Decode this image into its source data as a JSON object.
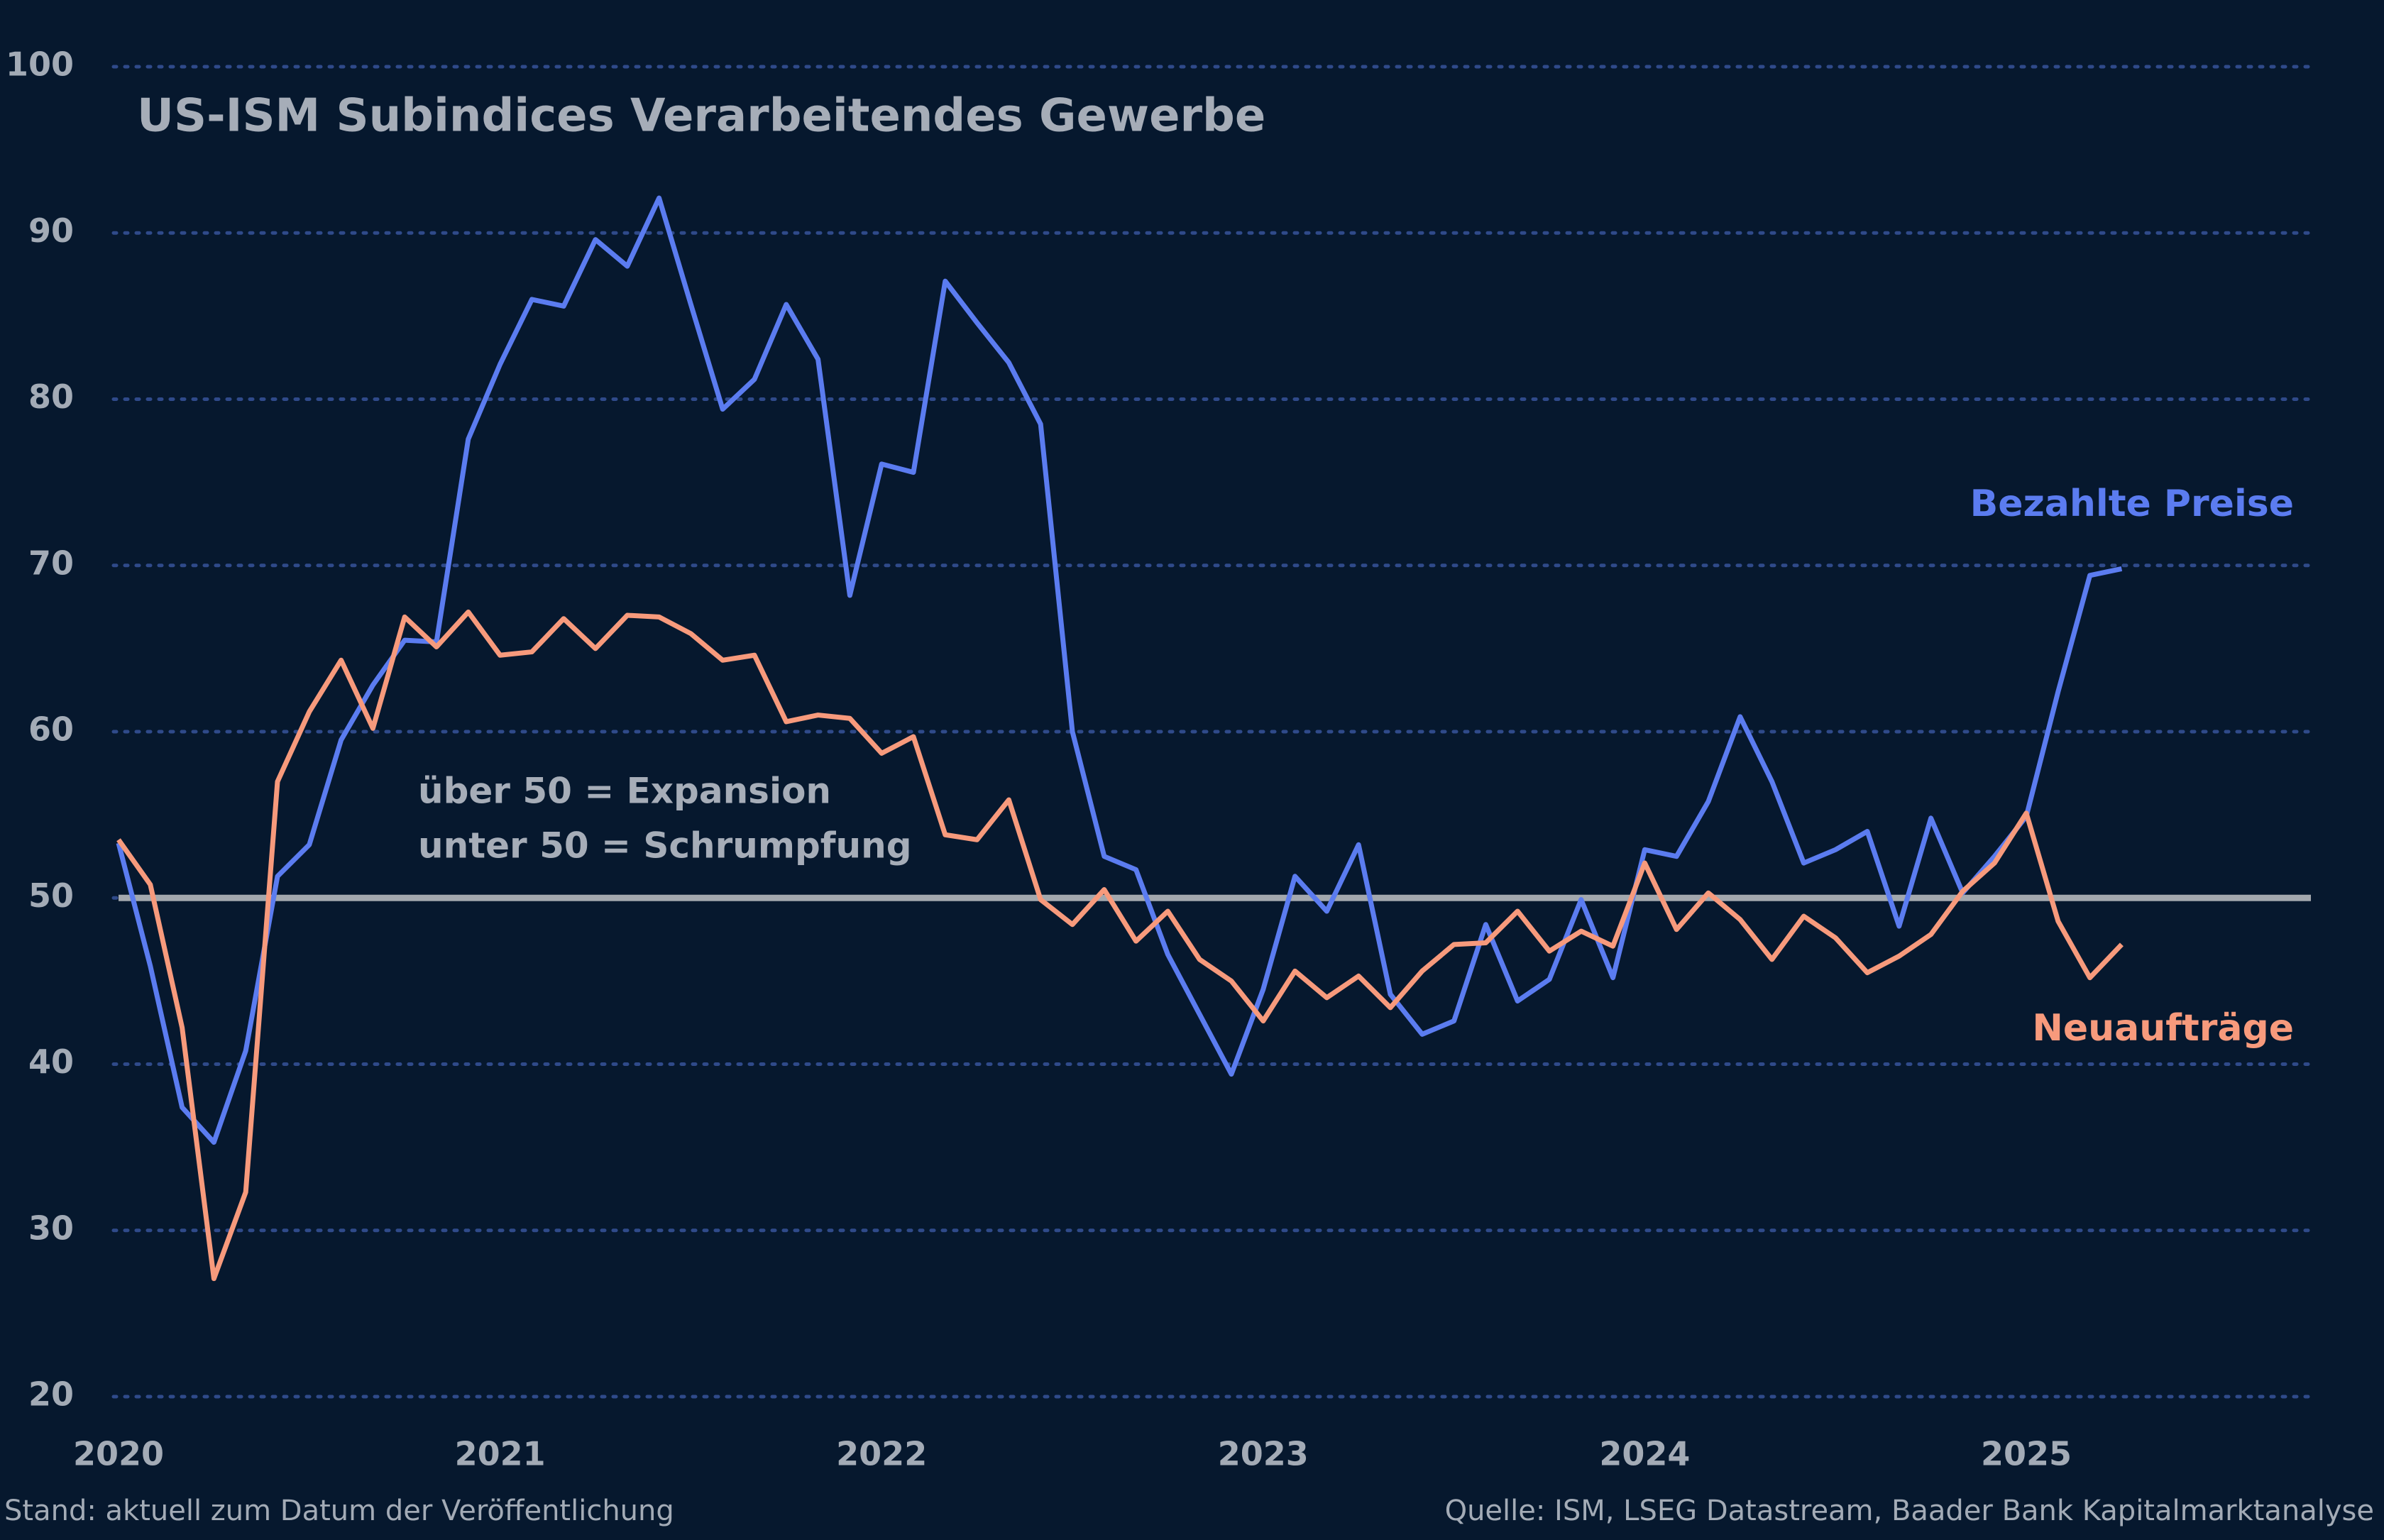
{
  "chart_data": {
    "type": "line",
    "title": "US-ISM Subindices Verarbeitendes Gewerbe",
    "categories": [
      "2020",
      null,
      null,
      null,
      null,
      null,
      null,
      null,
      null,
      null,
      null,
      null,
      "2021",
      null,
      null,
      null,
      null,
      null,
      null,
      null,
      null,
      null,
      null,
      null,
      "2022",
      null,
      null,
      null,
      null,
      null,
      null,
      null,
      null,
      null,
      null,
      null,
      "2023",
      null,
      null,
      null,
      null,
      null,
      null,
      null,
      null,
      null,
      null,
      null,
      "2024",
      null,
      null,
      null,
      null,
      null,
      null,
      null,
      null,
      null,
      null,
      null,
      "2025",
      null,
      null,
      null
    ],
    "series": [
      {
        "name": "Bezahlte Preise",
        "color": "#5b7cf0",
        "values": [
          53.3,
          45.9,
          37.4,
          35.3,
          40.8,
          51.3,
          53.2,
          59.5,
          62.8,
          65.5,
          65.4,
          77.6,
          82.1,
          86.0,
          85.6,
          89.6,
          88.0,
          92.1,
          85.7,
          79.4,
          81.2,
          85.7,
          82.4,
          68.2,
          76.1,
          75.6,
          87.1,
          84.6,
          82.2,
          78.5,
          60.0,
          52.5,
          51.7,
          46.6,
          43.0,
          39.4,
          44.5,
          51.3,
          49.2,
          53.2,
          44.2,
          41.8,
          42.6,
          48.4,
          43.8,
          45.1,
          49.9,
          45.2,
          52.9,
          52.5,
          55.8,
          60.9,
          57.0,
          52.1,
          52.9,
          54.0,
          48.3,
          54.8,
          50.3,
          52.5,
          54.9,
          62.4,
          69.4,
          69.8
        ]
      },
      {
        "name": "Neuaufträge",
        "color": "#f79a7c",
        "values": [
          53.5,
          50.8,
          42.2,
          27.1,
          32.3,
          57.0,
          61.2,
          64.3,
          60.2,
          66.9,
          65.1,
          67.2,
          64.6,
          64.8,
          66.8,
          65.0,
          67.0,
          66.9,
          65.9,
          64.3,
          64.6,
          60.6,
          61.0,
          60.8,
          58.7,
          59.7,
          53.8,
          53.5,
          55.9,
          49.9,
          48.4,
          50.5,
          47.4,
          49.2,
          46.3,
          45.0,
          42.6,
          45.6,
          44.0,
          45.3,
          43.4,
          45.6,
          47.2,
          47.3,
          49.2,
          46.8,
          48.0,
          47.1,
          52.1,
          48.1,
          50.3,
          48.7,
          46.3,
          48.9,
          47.6,
          45.5,
          46.5,
          47.8,
          50.4,
          52.1,
          55.1,
          48.6,
          45.2,
          47.2
        ]
      }
    ],
    "ylim": [
      20,
      100
    ],
    "yticks": [
      20,
      30,
      40,
      50,
      60,
      70,
      80,
      90,
      100
    ],
    "grid": true,
    "reference_line": 50,
    "annotation": [
      "über 50 = Expansion",
      "unter 50 = Schrumpfung"
    ],
    "footer_left": "Stand: aktuell zum Datum der Veröffentlichung",
    "footer_right": "Quelle: ISM, LSEG Datastream, Baader Bank Kapitalmarktanalyse"
  }
}
